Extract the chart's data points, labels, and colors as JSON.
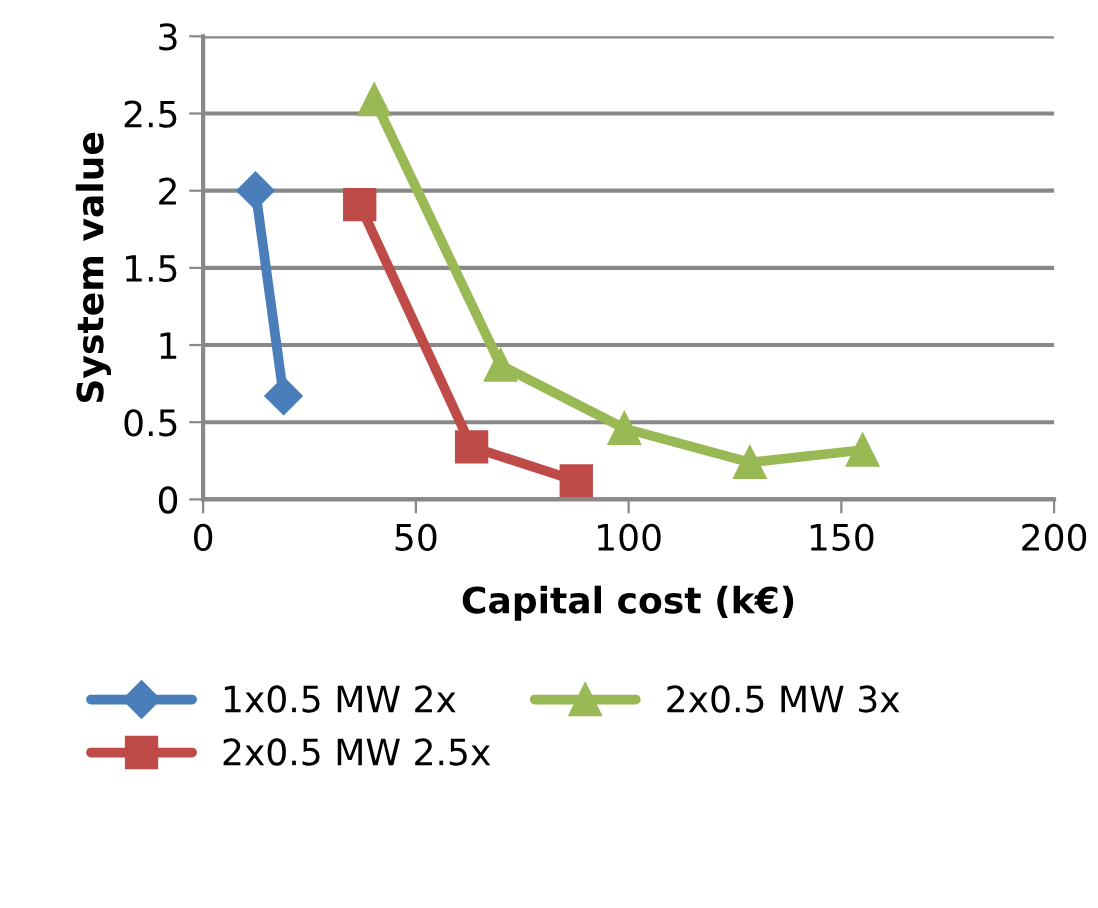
{
  "chart_data": {
    "type": "line",
    "xlabel": "Capital cost (k€)",
    "ylabel": "System value",
    "xlim": [
      0,
      200
    ],
    "xticks": [
      0,
      50,
      100,
      150,
      200
    ],
    "ylim": [
      0,
      3
    ],
    "yticks": [
      0,
      0.5,
      1,
      1.5,
      2,
      2.5,
      3
    ],
    "grid": "y",
    "legend": "bottom",
    "series": [
      {
        "name": "1x0.5 MW 2x",
        "color": "#4a7ebb",
        "marker": "diamond",
        "x": [
          12.3,
          18.9
        ],
        "values": [
          2.0,
          0.67
        ]
      },
      {
        "name": "2x0.5 MW 2.5x",
        "color": "#be4b48",
        "marker": "square",
        "x": [
          36.8,
          63.1,
          87.7
        ],
        "values": [
          1.91,
          0.34,
          0.12
        ]
      },
      {
        "name": "2x0.5 MW 3x",
        "color": "#98b954",
        "marker": "triangle",
        "x": [
          40.2,
          69.9,
          99,
          128.5,
          155
        ],
        "values": [
          2.59,
          0.87,
          0.46,
          0.24,
          0.32
        ]
      }
    ]
  }
}
